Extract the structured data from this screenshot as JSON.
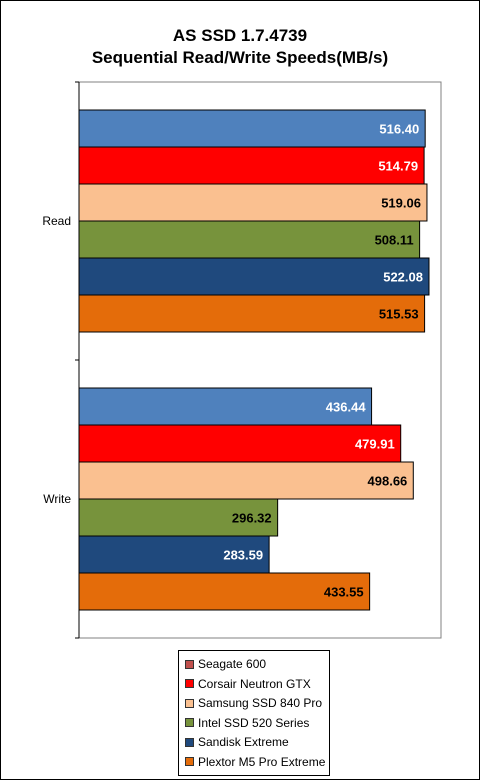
{
  "chart_data": {
    "type": "bar",
    "orientation": "horizontal",
    "title": "AS SSD 1.7.4739",
    "subtitle": "Sequential Read/Write Speeds(MB/s)",
    "categories": [
      "Read",
      "Write"
    ],
    "series": [
      {
        "name": "Seagate 600",
        "color": "#4F81BD",
        "label_color": "#ffffff",
        "values": [
          516.4,
          436.44
        ]
      },
      {
        "name": "Corsair Neutron GTX",
        "color": "#FF0000",
        "label_color": "#ffffff",
        "values": [
          514.79,
          479.91
        ]
      },
      {
        "name": "Samsung SSD 840 Pro",
        "color": "#FAC090",
        "label_color": "#000000",
        "values": [
          519.06,
          498.66
        ]
      },
      {
        "name": "Intel SSD 520 Series",
        "color": "#77933C",
        "label_color": "#000000",
        "values": [
          508.11,
          296.32
        ]
      },
      {
        "name": "Sandisk Extreme",
        "color": "#1F497D",
        "label_color": "#ffffff",
        "values": [
          522.08,
          283.59
        ]
      },
      {
        "name": "Plextor M5 Pro Extreme",
        "color": "#E46C0A",
        "label_color": "#000000",
        "values": [
          515.53,
          433.55
        ]
      }
    ],
    "value_labels": [
      [
        "516.40",
        "514.79",
        "519.06",
        "508.11",
        "522.08",
        "515.53"
      ],
      [
        "436.44",
        "479.91",
        "498.66",
        "296.32",
        "283.59",
        "433.55"
      ]
    ],
    "xlim": [
      0,
      540
    ],
    "grid": false,
    "plot_background": "#ffffff",
    "legend_position": "bottom"
  }
}
